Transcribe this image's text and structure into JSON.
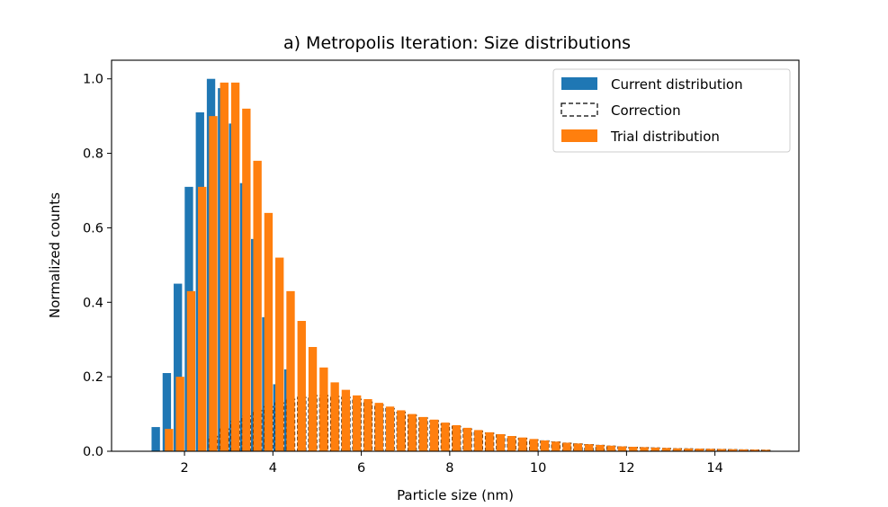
{
  "chart_data": {
    "type": "bar",
    "title": "a) Metropolis Iteration: Size distributions",
    "xlabel": "Particle size (nm)",
    "ylabel": "Normalized counts",
    "xlim": [
      0.35,
      15.9
    ],
    "ylim": [
      0.0,
      1.05
    ],
    "xticks": [
      2,
      4,
      6,
      8,
      10,
      12,
      14
    ],
    "yticks": [
      0.0,
      0.2,
      0.4,
      0.6,
      0.8,
      1.0
    ],
    "xtick_labels": [
      "2",
      "4",
      "6",
      "8",
      "10",
      "12",
      "14"
    ],
    "ytick_labels": [
      "0.0",
      "0.2",
      "0.4",
      "0.6",
      "0.8",
      "1.0"
    ],
    "legend_position": "top-right",
    "series": [
      {
        "name": "Current distribution",
        "color": "#1f77b4",
        "style": "filled",
        "x": [
          1.35,
          1.6,
          1.85,
          2.1,
          2.35,
          2.6,
          2.85,
          3.1,
          3.35,
          3.6,
          3.85,
          4.1,
          4.35
        ],
        "values": [
          0.065,
          0.21,
          0.45,
          0.71,
          0.91,
          1.0,
          0.975,
          0.88,
          0.72,
          0.57,
          0.36,
          0.18,
          0.22
        ]
      },
      {
        "name": "Correction",
        "color": "#000000",
        "style": "dashed-outline",
        "x": [
          2.65,
          2.9,
          3.15,
          3.4,
          3.65,
          3.9,
          4.15,
          4.4,
          4.65,
          4.9,
          5.15,
          5.4,
          5.65,
          5.9,
          6.15,
          6.4,
          6.65,
          6.9,
          7.15,
          7.4,
          7.65,
          7.9,
          8.15,
          8.4,
          8.65,
          8.9,
          9.15,
          9.4,
          9.65,
          9.9,
          10.15,
          10.4,
          10.65,
          10.9,
          11.15,
          11.4,
          11.65,
          11.9,
          12.15,
          12.4,
          12.65,
          12.9,
          13.15,
          13.4,
          13.65,
          13.9,
          14.15,
          14.4,
          14.65,
          14.9,
          15.15
        ],
        "values": [
          0.04,
          0.06,
          0.08,
          0.095,
          0.11,
          0.12,
          0.13,
          0.14,
          0.145,
          0.15,
          0.15,
          0.148,
          0.145,
          0.14,
          0.132,
          0.125,
          0.115,
          0.105,
          0.097,
          0.09,
          0.082,
          0.074,
          0.067,
          0.06,
          0.054,
          0.049,
          0.044,
          0.039,
          0.035,
          0.031,
          0.028,
          0.025,
          0.022,
          0.02,
          0.018,
          0.016,
          0.014,
          0.012,
          0.011,
          0.01,
          0.009,
          0.008,
          0.007,
          0.0065,
          0.006,
          0.0055,
          0.005,
          0.0045,
          0.004,
          0.0035,
          0.003
        ]
      },
      {
        "name": "Trial distribution",
        "color": "#ff7f0e",
        "style": "filled",
        "x": [
          1.65,
          1.9,
          2.15,
          2.4,
          2.65,
          2.9,
          3.15,
          3.4,
          3.65,
          3.9,
          4.15,
          4.4,
          4.65,
          4.9,
          5.15,
          5.4,
          5.65,
          5.9,
          6.15,
          6.4,
          6.65,
          6.9,
          7.15,
          7.4,
          7.65,
          7.9,
          8.15,
          8.4,
          8.65,
          8.9,
          9.15,
          9.4,
          9.65,
          9.9,
          10.15,
          10.4,
          10.65,
          10.9,
          11.15,
          11.4,
          11.65,
          11.9,
          12.15,
          12.4,
          12.65,
          12.9,
          13.15,
          13.4,
          13.65,
          13.9,
          14.15,
          14.4,
          14.65,
          14.9,
          15.15
        ],
        "values": [
          0.06,
          0.2,
          0.43,
          0.71,
          0.9,
          0.99,
          0.99,
          0.92,
          0.78,
          0.64,
          0.52,
          0.43,
          0.35,
          0.28,
          0.225,
          0.185,
          0.165,
          0.15,
          0.14,
          0.13,
          0.12,
          0.11,
          0.1,
          0.092,
          0.085,
          0.077,
          0.07,
          0.063,
          0.057,
          0.051,
          0.046,
          0.041,
          0.037,
          0.033,
          0.029,
          0.026,
          0.023,
          0.021,
          0.019,
          0.017,
          0.015,
          0.013,
          0.012,
          0.011,
          0.01,
          0.009,
          0.008,
          0.0075,
          0.007,
          0.0065,
          0.006,
          0.0055,
          0.005,
          0.0045,
          0.004
        ]
      }
    ]
  }
}
